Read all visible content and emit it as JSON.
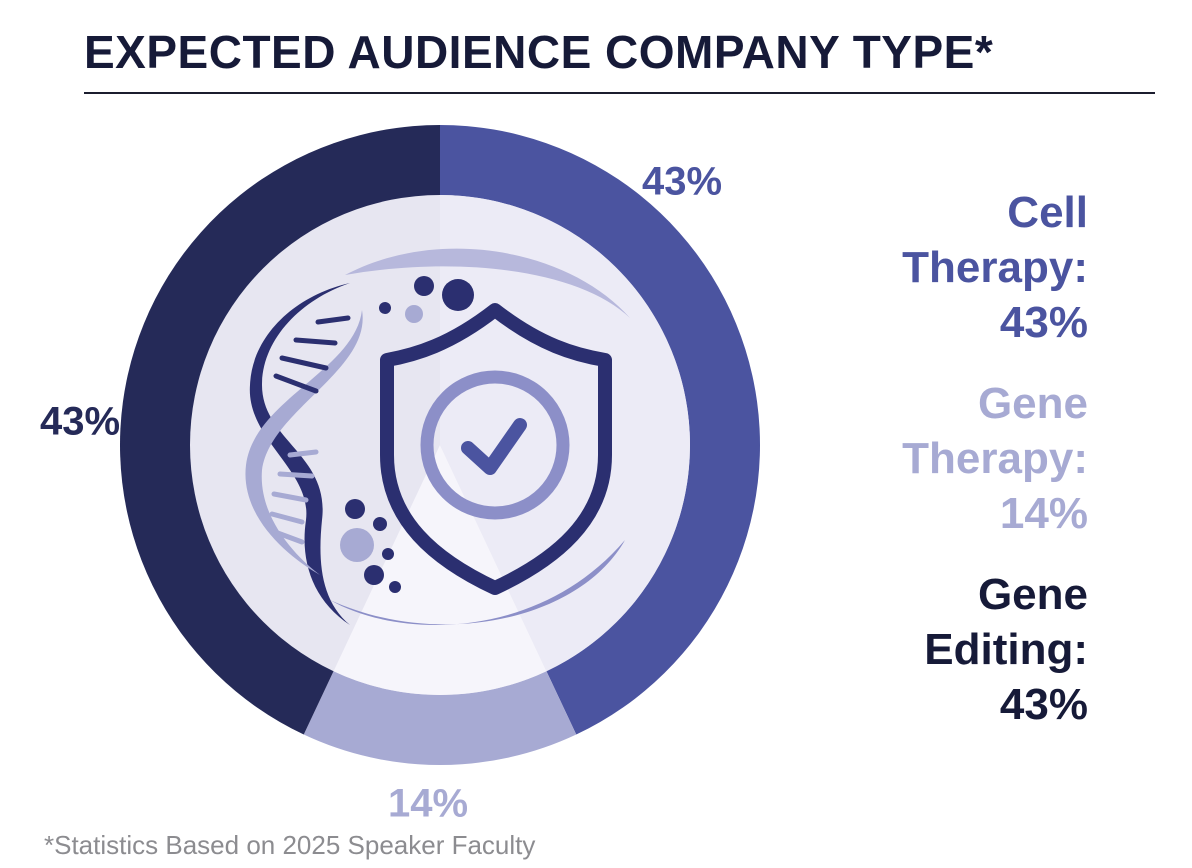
{
  "title": "EXPECTED AUDIENCE COMPANY TYPE*",
  "footnote": "*Statistics Based on 2025 Speaker Faculty",
  "colors": {
    "cell_therapy": "#4b54a0",
    "gene_therapy": "#a7aad3",
    "gene_editing": "#252a58",
    "inner_disc": "#e7e6f1",
    "icon_dark": "#2b2f70",
    "icon_light": "#a7aad3"
  },
  "legend": [
    {
      "lines": [
        "Cell",
        "Therapy:",
        "43%"
      ],
      "color": "#4b54a0"
    },
    {
      "lines": [
        "Gene",
        "Therapy:",
        "14%"
      ],
      "color": "#a7aad3"
    },
    {
      "lines": [
        "Gene",
        "Editing:",
        "43%"
      ],
      "color": "#161a38"
    }
  ],
  "chart_data": {
    "type": "pie",
    "style": "donut",
    "categories": [
      "Cell Therapy",
      "Gene Therapy",
      "Gene Editing"
    ],
    "values": [
      43,
      14,
      43
    ],
    "data_labels": [
      "43%",
      "14%",
      "43%"
    ],
    "colors": [
      "#4b54a0",
      "#a7aad3",
      "#252a58"
    ],
    "start": "top",
    "direction": "clockwise",
    "legend_position": "right"
  },
  "icon": {
    "name": "dna-shield-check-icon"
  }
}
